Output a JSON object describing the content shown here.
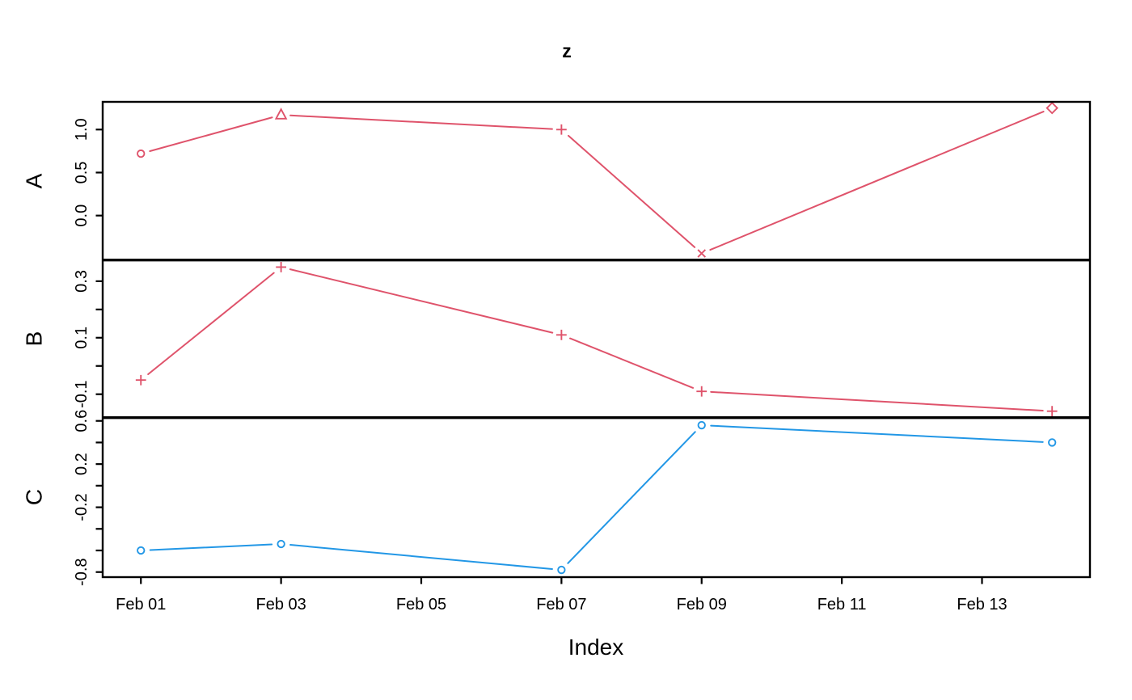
{
  "chart_data": {
    "type": "line",
    "title": "z",
    "xlabel": "Index",
    "grid": false,
    "legend": "none",
    "x_axis": {
      "tick_labels": [
        "Feb 01",
        "Feb 03",
        "Feb 05",
        "Feb 07",
        "Feb 09",
        "Feb 11",
        "Feb 13"
      ],
      "tick_days": [
        1,
        3,
        5,
        7,
        9,
        11,
        13
      ],
      "range_days": [
        0.455,
        14.54
      ]
    },
    "panels": [
      {
        "name": "A",
        "color": "#DF536B",
        "line_type": "b",
        "ylim": [
          -0.517,
          1.322
        ],
        "yticks": [
          {
            "v": 1.0,
            "label": "1.0"
          },
          {
            "v": 0.5,
            "label": "0.5"
          },
          {
            "v": 0.0,
            "label": "0.0"
          }
        ],
        "points": [
          {
            "date": "Feb 01",
            "day": 1,
            "value": 0.72,
            "marker": "circle"
          },
          {
            "date": "Feb 03",
            "day": 3,
            "value": 1.17,
            "marker": "triangle"
          },
          {
            "date": "Feb 07",
            "day": 7,
            "value": 1.0,
            "marker": "plus"
          },
          {
            "date": "Feb 09",
            "day": 9,
            "value": -0.44,
            "marker": "x"
          },
          {
            "date": "Feb 14",
            "day": 14,
            "value": 1.25,
            "marker": "diamond"
          }
        ]
      },
      {
        "name": "B",
        "color": "#DF536B",
        "line_type": "b",
        "ylim": [
          -0.183,
          0.375
        ],
        "yticks": [
          {
            "v": 0.3,
            "label": "0.3"
          },
          {
            "v": 0.2,
            "label": ""
          },
          {
            "v": 0.1,
            "label": "0.1"
          },
          {
            "v": 0.0,
            "label": ""
          },
          {
            "v": -0.1,
            "label": "-0.1"
          }
        ],
        "points": [
          {
            "date": "Feb 01",
            "day": 1,
            "value": -0.05,
            "marker": "plus"
          },
          {
            "date": "Feb 03",
            "day": 3,
            "value": 0.35,
            "marker": "plus"
          },
          {
            "date": "Feb 07",
            "day": 7,
            "value": 0.11,
            "marker": "plus"
          },
          {
            "date": "Feb 09",
            "day": 9,
            "value": -0.09,
            "marker": "plus"
          },
          {
            "date": "Feb 14",
            "day": 14,
            "value": -0.16,
            "marker": "plus"
          }
        ]
      },
      {
        "name": "C",
        "color": "#2297E6",
        "line_type": "b",
        "ylim": [
          -0.847,
          0.63
        ],
        "yticks": [
          {
            "v": 0.6,
            "label": "0.6"
          },
          {
            "v": 0.4,
            "label": ""
          },
          {
            "v": 0.2,
            "label": "0.2"
          },
          {
            "v": 0.0,
            "label": ""
          },
          {
            "v": -0.2,
            "label": "-0.2"
          },
          {
            "v": -0.4,
            "label": ""
          },
          {
            "v": -0.6,
            "label": ""
          },
          {
            "v": -0.8,
            "label": "-0.8"
          }
        ],
        "points": [
          {
            "date": "Feb 01",
            "day": 1,
            "value": -0.6,
            "marker": "circle"
          },
          {
            "date": "Feb 03",
            "day": 3,
            "value": -0.54,
            "marker": "circle"
          },
          {
            "date": "Feb 07",
            "day": 7,
            "value": -0.78,
            "marker": "circle"
          },
          {
            "date": "Feb 09",
            "day": 9,
            "value": 0.56,
            "marker": "circle"
          },
          {
            "date": "Feb 14",
            "day": 14,
            "value": 0.4,
            "marker": "circle"
          }
        ]
      }
    ]
  }
}
